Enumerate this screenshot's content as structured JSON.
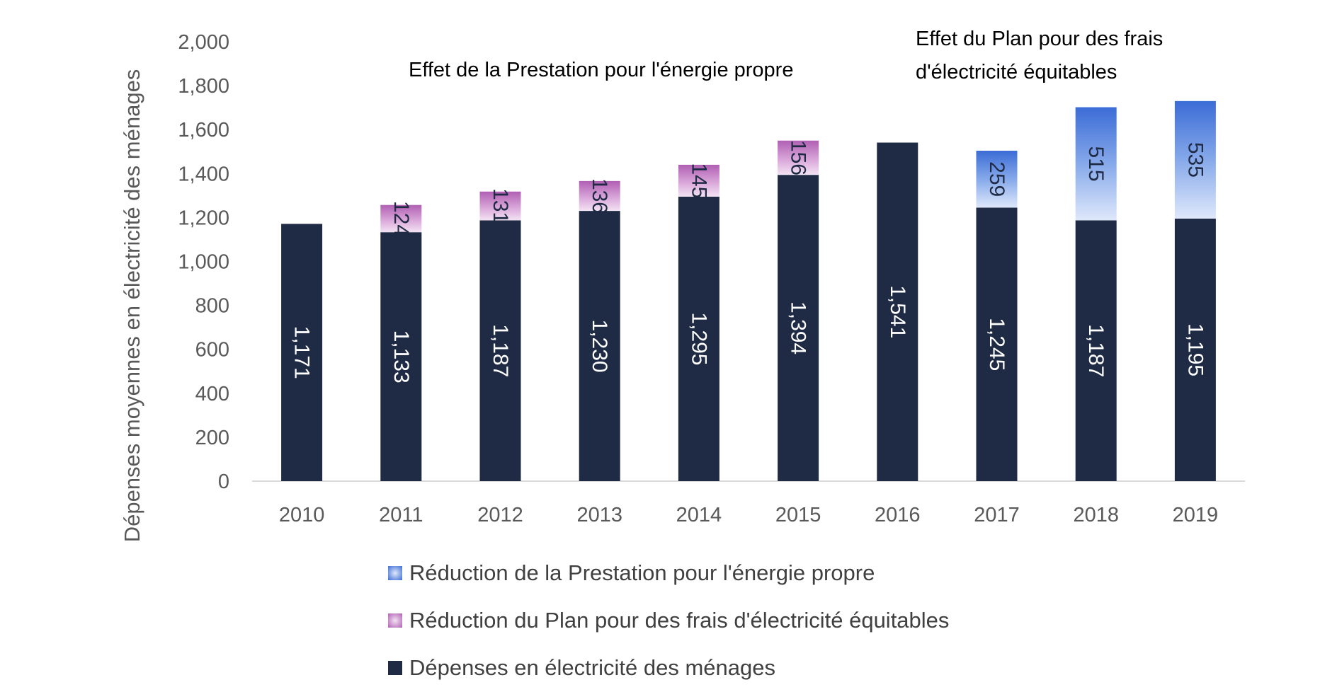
{
  "chart_data": {
    "type": "bar",
    "stacked": true,
    "categories": [
      "2010",
      "2011",
      "2012",
      "2013",
      "2014",
      "2015",
      "2016",
      "2017",
      "2018",
      "2019"
    ],
    "series": [
      {
        "name": "Dépenses en électricité des ménages",
        "values": [
          1171,
          1133,
          1187,
          1230,
          1295,
          1394,
          1541,
          1245,
          1187,
          1195
        ],
        "labels": [
          "1,171",
          "1,133",
          "1,187",
          "1,230",
          "1,295",
          "1,394",
          "1,541",
          "1,245",
          "1,187",
          "1,195"
        ],
        "color": "#1f2a44"
      },
      {
        "name": "Réduction du Plan pour des frais d'électricité équitables",
        "values": [
          0,
          124,
          131,
          136,
          145,
          156,
          0,
          0,
          0,
          0
        ],
        "labels": [
          "",
          "124",
          "131",
          "136",
          "145",
          "156",
          "",
          "",
          "",
          ""
        ],
        "color": "#c77fc7"
      },
      {
        "name": "Réduction de la Prestation pour l'énergie propre",
        "values": [
          0,
          0,
          0,
          0,
          0,
          0,
          0,
          259,
          515,
          535
        ],
        "labels": [
          "",
          "",
          "",
          "",
          "",
          "",
          "",
          "259",
          "515",
          "535"
        ],
        "color": "#4a79d6"
      }
    ],
    "ylabel": "Dépenses moyennes en électricité des ménages",
    "ylim": [
      0,
      2000
    ],
    "yticks": [
      "0",
      "200",
      "400",
      "600",
      "800",
      "1,000",
      "1,200",
      "1,400",
      "1,600",
      "1,800",
      "2,000"
    ],
    "legend_position": "bottom",
    "annotations": [
      {
        "text": "Effet de la Prestation pour l'énergie propre"
      },
      {
        "text": "Effet du Plan pour des frais",
        "text2": "d'électricité équitables"
      }
    ]
  }
}
